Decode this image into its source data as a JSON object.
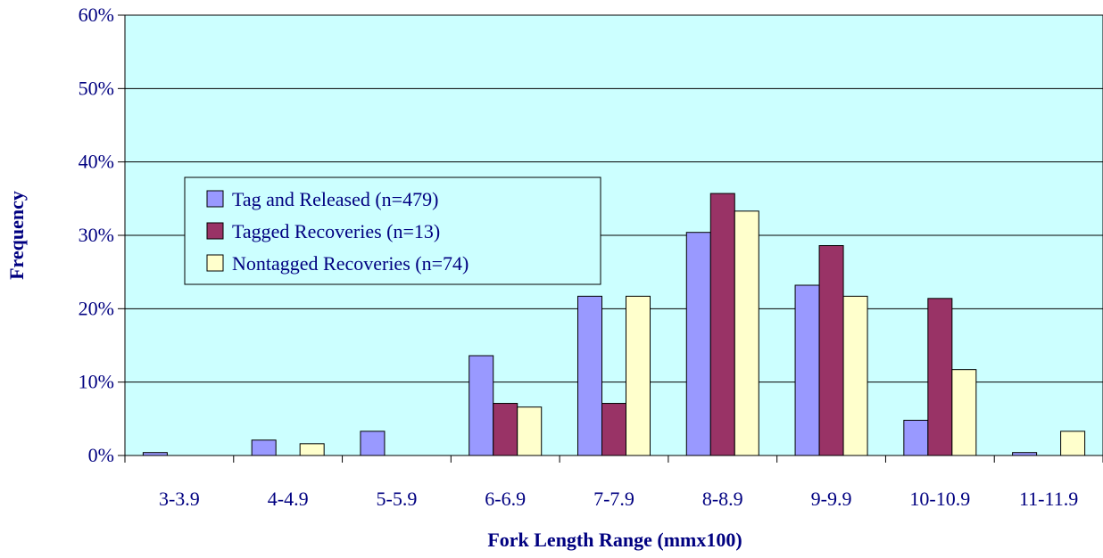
{
  "chart_data": {
    "type": "bar",
    "title": "",
    "xlabel": "Fork Length Range (mmx100)",
    "ylabel": "Frequency",
    "ylim": [
      0,
      60
    ],
    "y_ticks": [
      0,
      10,
      20,
      30,
      40,
      50,
      60
    ],
    "y_tick_labels": [
      "0%",
      "10%",
      "20%",
      "30%",
      "40%",
      "50%",
      "60%"
    ],
    "grid": true,
    "legend_position": "upper-left",
    "categories": [
      "3-3.9",
      "4-4.9",
      "5-5.9",
      "6-6.9",
      "7-7.9",
      "8-8.9",
      "9-9.9",
      "10-10.9",
      "11-11.9"
    ],
    "series": [
      {
        "name": "Tag and Released (n=479)",
        "color": "#9999FF",
        "values": [
          0.4,
          2.1,
          3.3,
          13.6,
          21.7,
          30.4,
          23.2,
          4.8,
          0.4
        ]
      },
      {
        "name": "Tagged Recoveries (n=13)",
        "color": "#993366",
        "values": [
          0,
          0,
          0,
          7.1,
          7.1,
          35.7,
          28.6,
          21.4,
          0
        ]
      },
      {
        "name": "Nontagged Recoveries (n=74)",
        "color": "#FFFFCC",
        "values": [
          0,
          1.6,
          0,
          6.6,
          21.7,
          33.3,
          21.7,
          11.7,
          3.3
        ]
      }
    ],
    "plot_background": "#CCFFFF"
  }
}
